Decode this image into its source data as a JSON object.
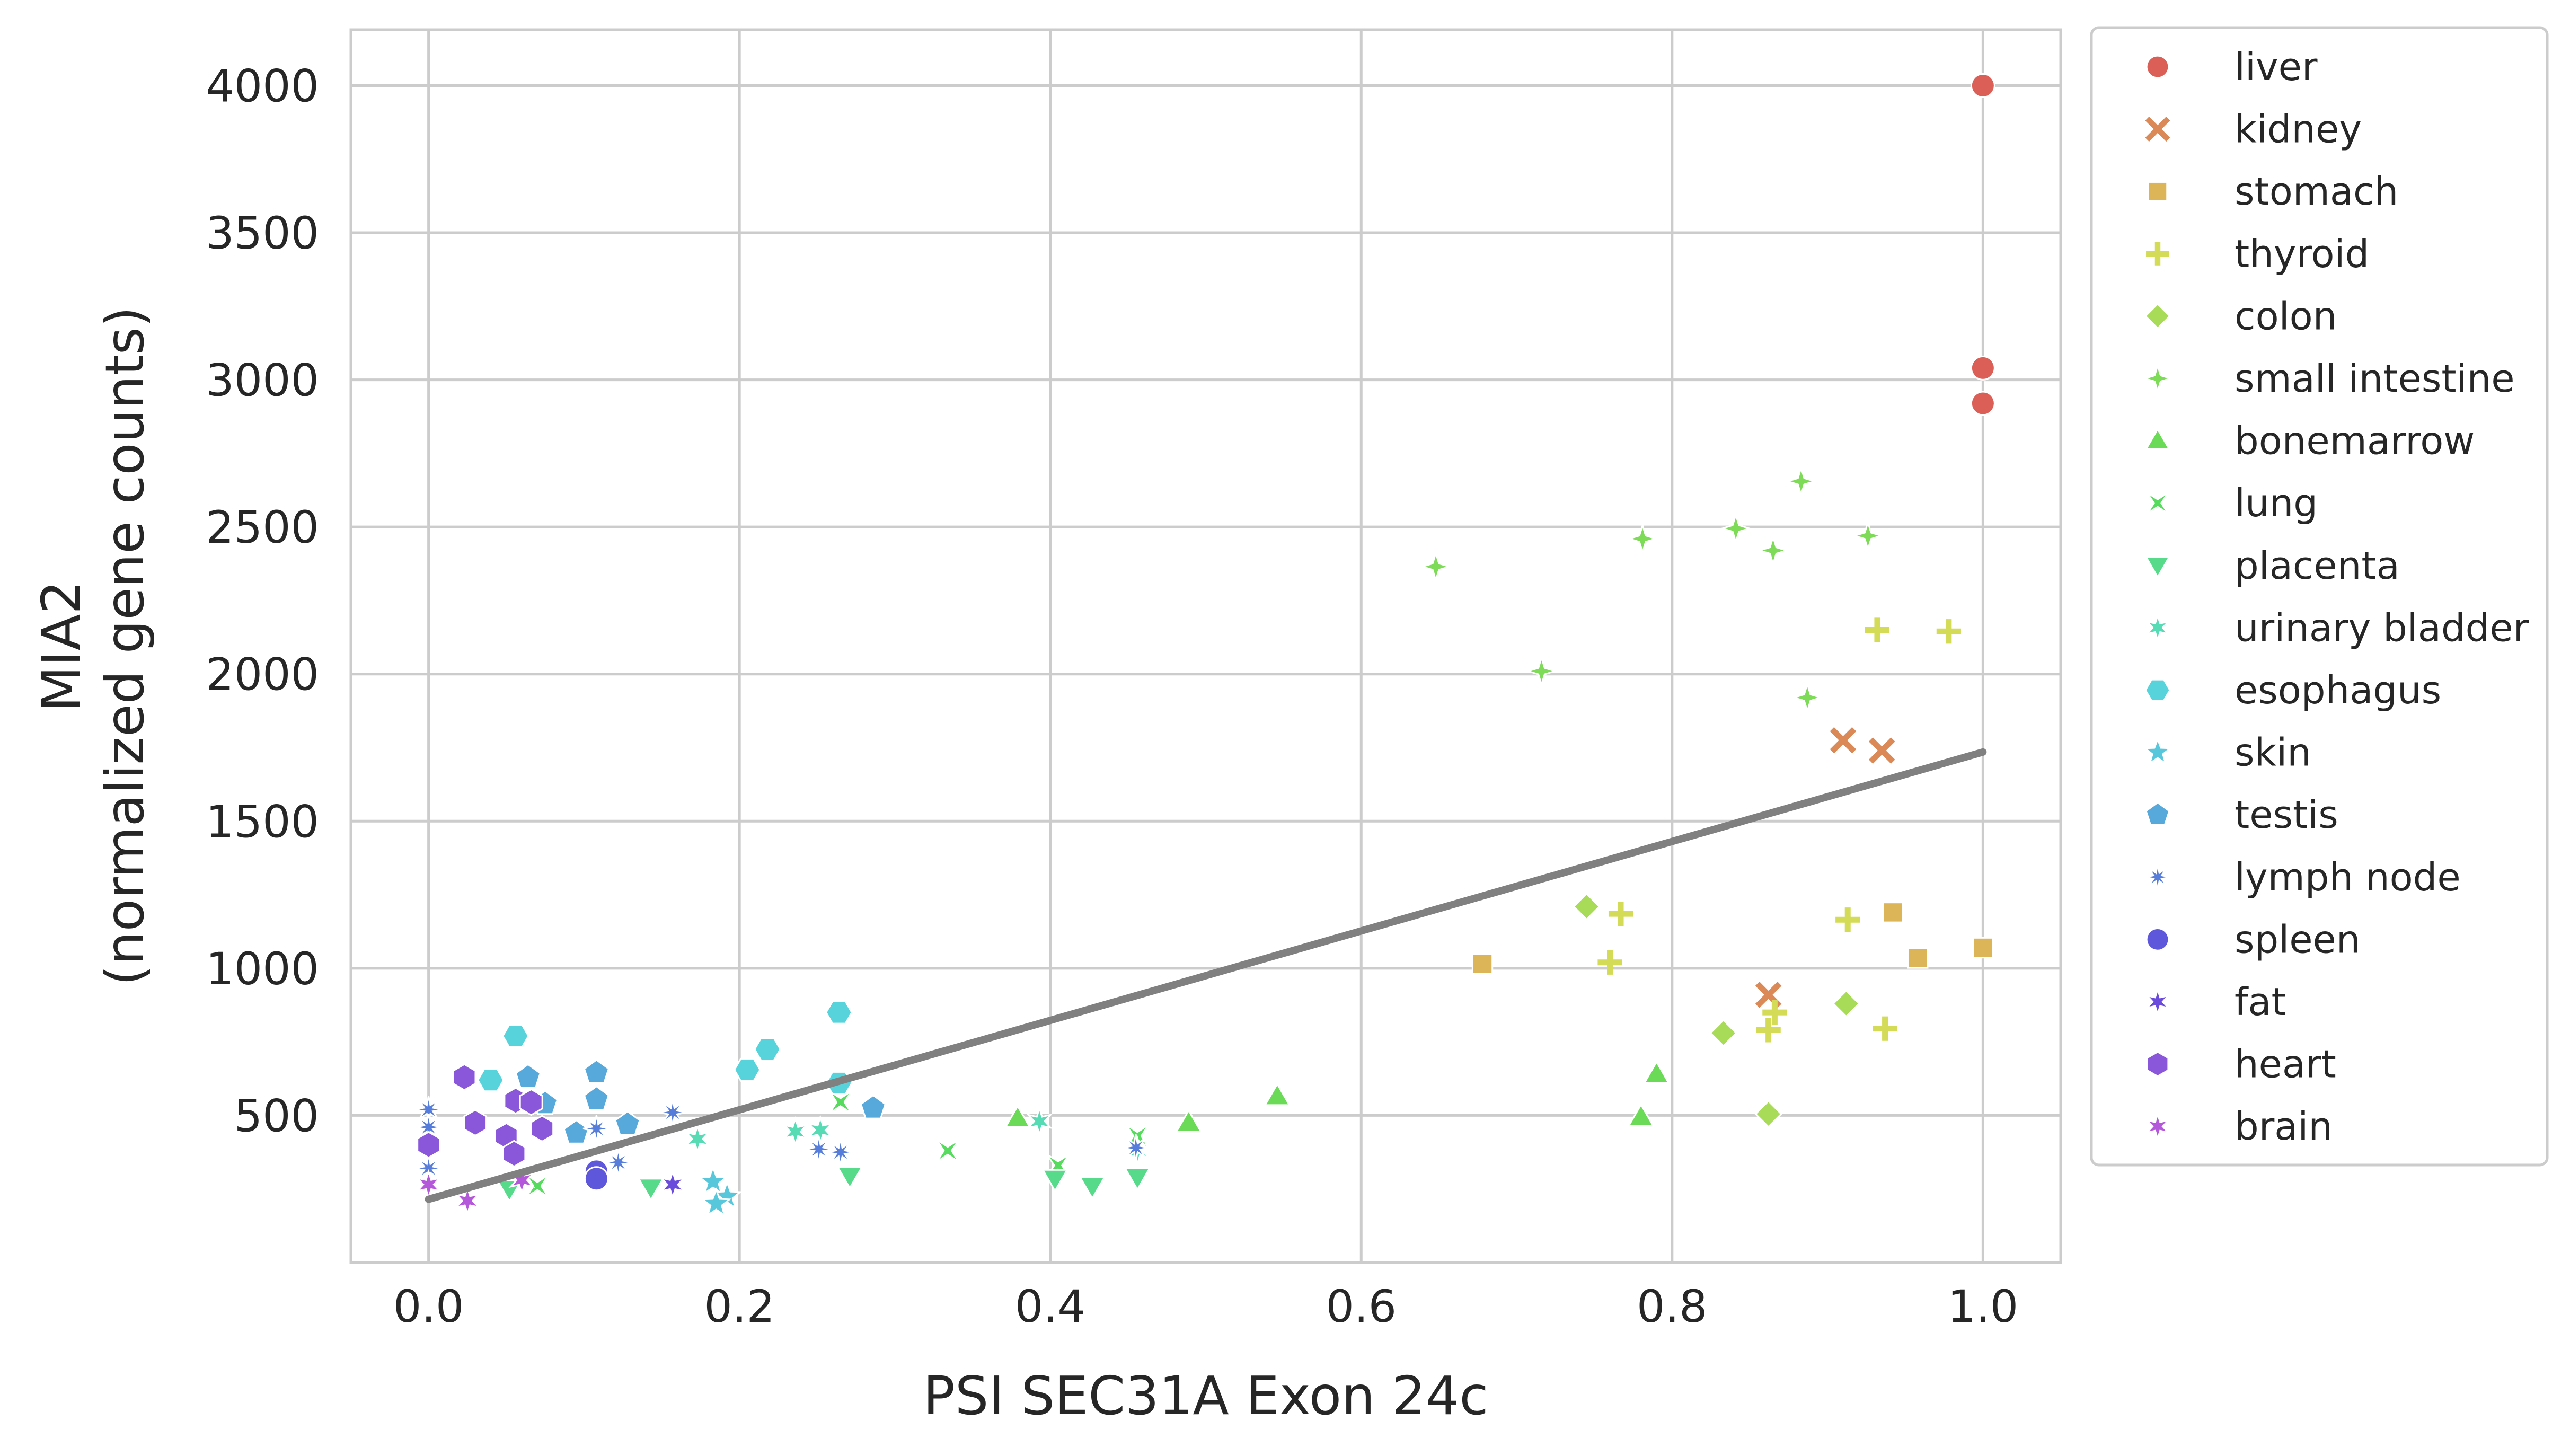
{
  "chart_data": {
    "type": "scatter",
    "title": "",
    "xlabel": "PSI SEC31A Exon 24c",
    "ylabel_lines": [
      "MIA2",
      "(normalized gene counts)"
    ],
    "xlim": [
      -0.05,
      1.05
    ],
    "ylim": [
      0,
      4190
    ],
    "xticks": [
      0.0,
      0.2,
      0.4,
      0.6,
      0.8,
      1.0
    ],
    "xtick_labels": [
      "0.0",
      "0.2",
      "0.4",
      "0.6",
      "0.8",
      "1.0"
    ],
    "yticks": [
      500,
      1000,
      1500,
      2000,
      2500,
      3000,
      3500,
      4000
    ],
    "ytick_labels": [
      "500",
      "1000",
      "1500",
      "2000",
      "2500",
      "3000",
      "3500",
      "4000"
    ],
    "grid": true,
    "legend_position": "outside-right",
    "regression_line": {
      "x": [
        0.0,
        1.0
      ],
      "y": [
        215,
        1735
      ],
      "color": "#808080"
    },
    "series": [
      {
        "name": "liver",
        "marker": "circle",
        "color": "#db5f57",
        "points": [
          [
            1.0,
            4000
          ],
          [
            1.0,
            3040
          ],
          [
            1.0,
            2920
          ]
        ]
      },
      {
        "name": "kidney",
        "marker": "x",
        "color": "#db8a57",
        "points": [
          [
            0.91,
            1775
          ],
          [
            0.935,
            1740
          ],
          [
            0.862,
            910
          ]
        ]
      },
      {
        "name": "stomach",
        "marker": "square",
        "color": "#dbb557",
        "points": [
          [
            0.678,
            1015
          ],
          [
            0.942,
            1190
          ],
          [
            0.958,
            1035
          ],
          [
            1.0,
            1070
          ]
        ]
      },
      {
        "name": "thyroid",
        "marker": "plus",
        "color": "#d3db57",
        "points": [
          [
            0.932,
            2150
          ],
          [
            0.978,
            2145
          ],
          [
            0.767,
            1185
          ],
          [
            0.913,
            1165
          ],
          [
            0.76,
            1020
          ],
          [
            0.866,
            850
          ],
          [
            0.862,
            790
          ],
          [
            0.937,
            795
          ]
        ]
      },
      {
        "name": "colon",
        "marker": "diamond",
        "color": "#a8db57",
        "points": [
          [
            0.745,
            1210
          ],
          [
            0.912,
            880
          ],
          [
            0.833,
            780
          ],
          [
            0.862,
            505
          ]
        ]
      },
      {
        "name": "small intestine",
        "marker": "thin-diamond",
        "color": "#7ddb57",
        "points": [
          [
            0.648,
            2365
          ],
          [
            0.716,
            2010
          ],
          [
            0.781,
            2460
          ],
          [
            0.841,
            2495
          ],
          [
            0.883,
            2655
          ],
          [
            0.865,
            2420
          ],
          [
            0.926,
            2470
          ],
          [
            0.887,
            1920
          ]
        ]
      },
      {
        "name": "bonemarrow",
        "marker": "triangle-up",
        "color": "#57db5f",
        "points": [
          [
            0.379,
            490
          ],
          [
            0.489,
            475
          ],
          [
            0.546,
            565
          ],
          [
            0.79,
            640
          ],
          [
            0.78,
            495
          ]
        ]
      },
      {
        "name": "lung",
        "marker": "bowtie",
        "color": "#57db8a",
        "points": [
          [
            0.265,
            545
          ],
          [
            0.334,
            380
          ],
          [
            0.405,
            330
          ],
          [
            0.456,
            430
          ],
          [
            0.07,
            260
          ]
        ]
      },
      {
        "name": "placenta",
        "marker": "triangle-down",
        "color": "#57dbb5",
        "points": [
          [
            0.143,
            255
          ],
          [
            0.271,
            295
          ],
          [
            0.403,
            285
          ],
          [
            0.427,
            260
          ],
          [
            0.456,
            290
          ],
          [
            0.052,
            250
          ]
        ]
      },
      {
        "name": "urinary bladder",
        "marker": "star6",
        "color": "#57d3db",
        "points": [
          [
            0.173,
            420
          ],
          [
            0.236,
            445
          ],
          [
            0.252,
            450
          ],
          [
            0.393,
            480
          ],
          [
            0.456,
            380
          ]
        ]
      },
      {
        "name": "esophagus",
        "marker": "hexagon-flat",
        "color": "#57a8db",
        "points": [
          [
            0.056,
            770
          ],
          [
            0.04,
            620
          ],
          [
            0.205,
            655
          ],
          [
            0.218,
            725
          ],
          [
            0.264,
            850
          ],
          [
            0.264,
            610
          ]
        ]
      },
      {
        "name": "skin",
        "marker": "star5",
        "color": "#577ddb",
        "points": [
          [
            0.183,
            275
          ],
          [
            0.192,
            225
          ],
          [
            0.185,
            200
          ]
        ]
      },
      {
        "name": "testis",
        "marker": "pentagon",
        "color": "#5f57db",
        "points": [
          [
            0.064,
            630
          ],
          [
            0.108,
            645
          ],
          [
            0.075,
            540
          ],
          [
            0.108,
            555
          ],
          [
            0.095,
            440
          ],
          [
            0.128,
            470
          ],
          [
            0.286,
            525
          ]
        ]
      },
      {
        "name": "lymph node",
        "marker": "star8",
        "color": "#8a57db",
        "points": [
          [
            0.0,
            520
          ],
          [
            0.0,
            460
          ],
          [
            0.108,
            455
          ],
          [
            0.157,
            510
          ],
          [
            0.122,
            340
          ],
          [
            0.251,
            385
          ],
          [
            0.265,
            375
          ],
          [
            0.455,
            390
          ],
          [
            0.0,
            320
          ]
        ]
      },
      {
        "name": "spleen",
        "marker": "circle",
        "color": "#b557db",
        "points": [
          [
            0.108,
            310
          ],
          [
            0.108,
            285
          ]
        ]
      },
      {
        "name": "fat",
        "marker": "star6",
        "color": "#db57d3",
        "points": [
          [
            0.157,
            265
          ]
        ]
      },
      {
        "name": "heart",
        "marker": "hexagon",
        "color": "#db57a8",
        "points": [
          [
            0.023,
            630
          ],
          [
            0.03,
            475
          ],
          [
            0.056,
            550
          ],
          [
            0.066,
            545
          ],
          [
            0.05,
            430
          ],
          [
            0.055,
            370
          ],
          [
            0.073,
            455
          ],
          [
            0.0,
            400
          ]
        ]
      },
      {
        "name": "brain",
        "marker": "star6",
        "color": "#db577d",
        "points": [
          [
            0.0,
            265
          ],
          [
            0.025,
            210
          ],
          [
            0.06,
            280
          ]
        ]
      }
    ]
  },
  "palette_note_colors": [
    "#db5f57",
    "#db8a57",
    "#dbb557",
    "#d3db57",
    "#a8db57",
    "#7ddb57",
    "#5fdb57",
    "#57db8a",
    "#57dbb5",
    "#57d3db",
    "#57a8db",
    "#577ddb",
    "#5f57db",
    "#8a57db",
    "#b557db",
    "#db57d3",
    "#db57a8",
    "#db577d"
  ]
}
